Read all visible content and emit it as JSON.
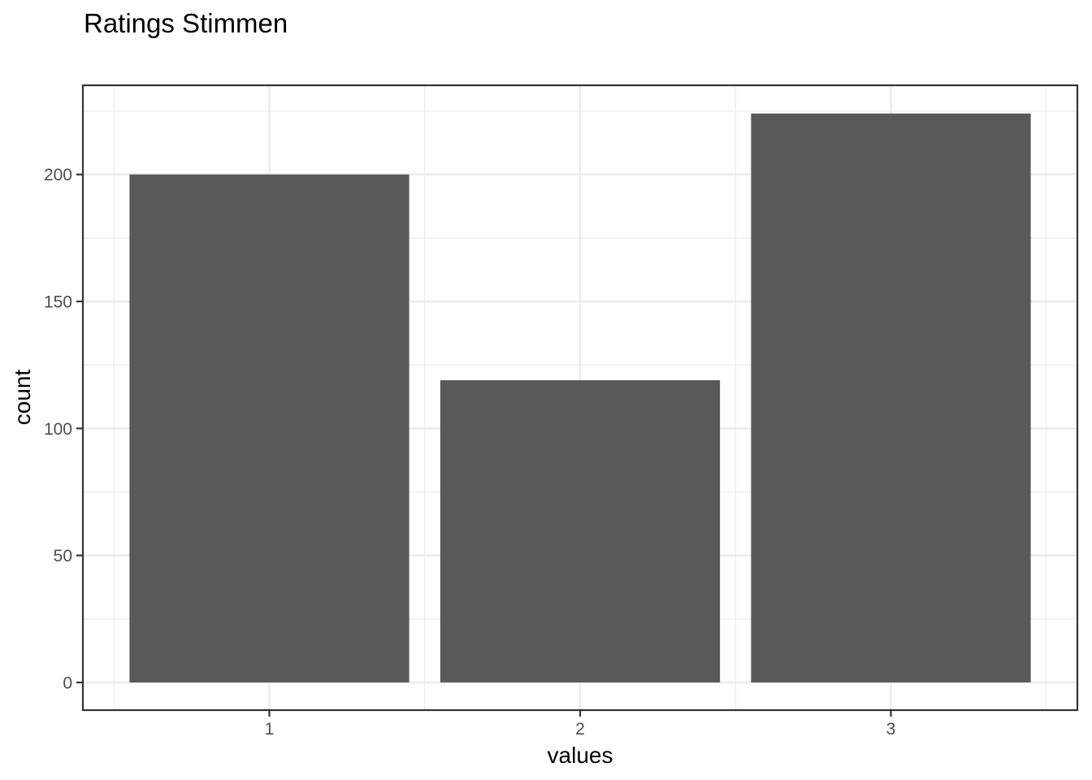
{
  "chart_data": {
    "type": "bar",
    "title": "Ratings Stimmen",
    "xlabel": "values",
    "ylabel": "count",
    "categories": [
      "1",
      "2",
      "3"
    ],
    "values": [
      200,
      119,
      224
    ],
    "ylim": [
      -10.9,
      235.1
    ],
    "yticks": [
      0,
      50,
      100,
      150,
      200
    ],
    "ytick_labels": [
      "0",
      "50",
      "100",
      "150",
      "200"
    ],
    "grid": true,
    "bar_color": "#595959",
    "theme": "bw"
  }
}
